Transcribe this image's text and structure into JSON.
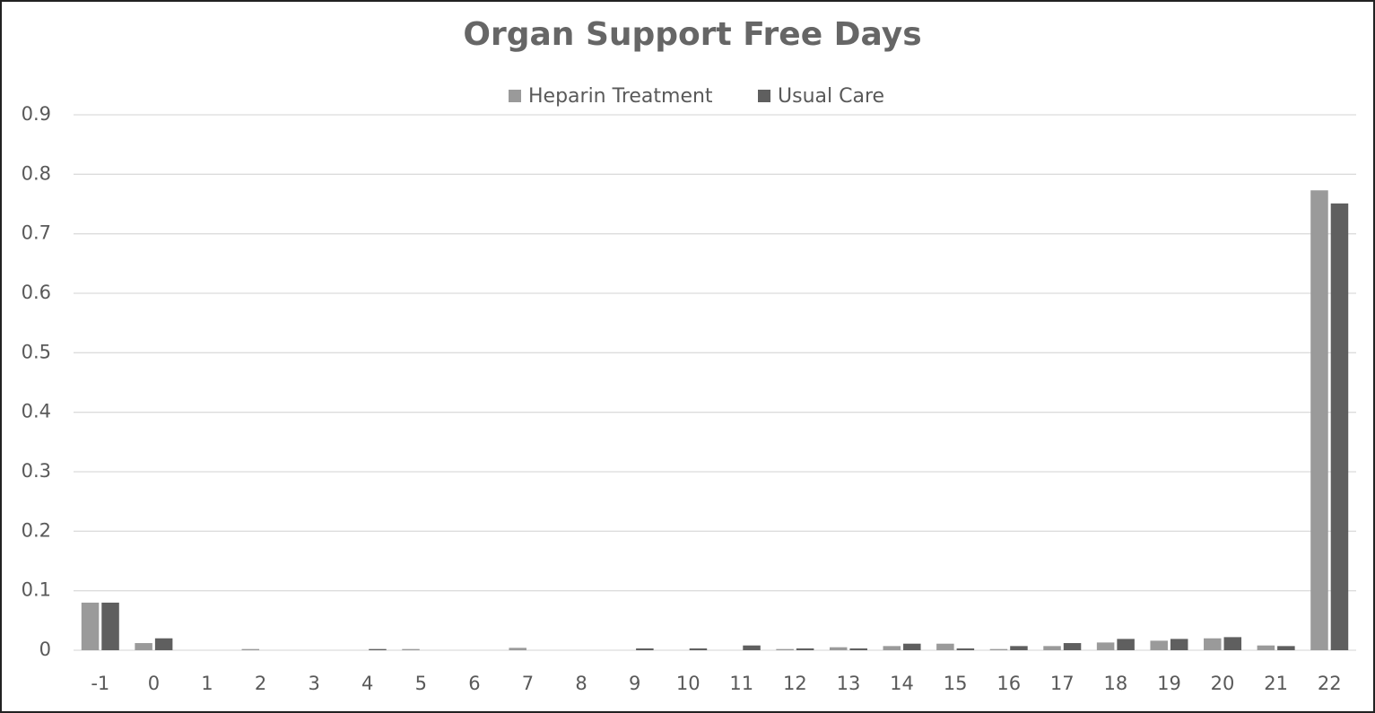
{
  "chart_data": {
    "type": "bar",
    "title": "Organ Support Free Days",
    "categories": [
      "-1",
      "0",
      "1",
      "2",
      "3",
      "4",
      "5",
      "6",
      "7",
      "8",
      "9",
      "10",
      "11",
      "12",
      "13",
      "14",
      "15",
      "16",
      "17",
      "18",
      "19",
      "20",
      "21",
      "22"
    ],
    "series": [
      {
        "name": "Heparin Treatment",
        "color": "#9a9a9a",
        "values": [
          0.08,
          0.012,
          0,
          0.002,
          0,
          0,
          0.002,
          0,
          0.004,
          0,
          0,
          0,
          0,
          0.002,
          0.005,
          0.007,
          0.011,
          0.002,
          0.007,
          0.013,
          0.016,
          0.02,
          0.008,
          0.773
        ]
      },
      {
        "name": "Usual Care",
        "color": "#5f5f5f",
        "values": [
          0.08,
          0.02,
          0,
          0,
          0,
          0.002,
          0,
          0,
          0,
          0,
          0.003,
          0.003,
          0.008,
          0.003,
          0.003,
          0.011,
          0.003,
          0.007,
          0.012,
          0.019,
          0.019,
          0.022,
          0.007,
          0.751
        ]
      }
    ],
    "ylim": [
      0,
      0.9
    ],
    "yticks": [
      0,
      0.1,
      0.2,
      0.3,
      0.4,
      0.5,
      0.6,
      0.7,
      0.8,
      0.9
    ],
    "grid": true,
    "legend": "top"
  }
}
